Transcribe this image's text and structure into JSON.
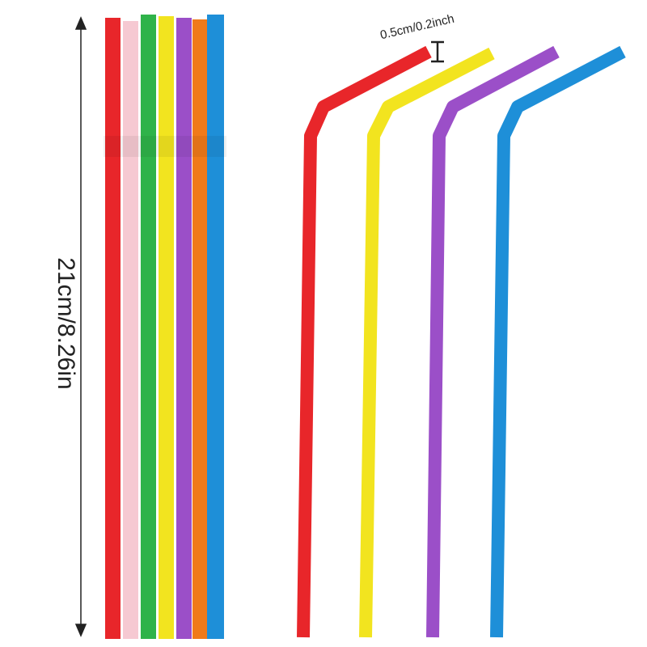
{
  "dimensions": {
    "length": "21cm/8.26in",
    "diameter": "0.5cm/0.2inch"
  }
}
